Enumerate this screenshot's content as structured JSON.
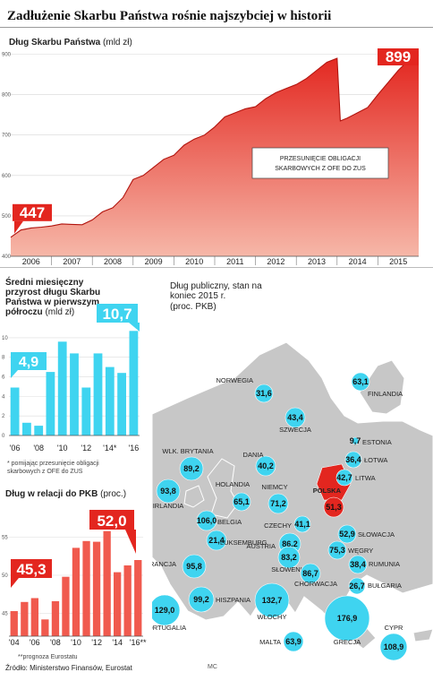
{
  "header": {
    "title": "Zadłużenie Skarbu Państwa rośnie najszybciej w historii"
  },
  "colors": {
    "red": "#e3261f",
    "redLight": "#f6b7a8",
    "cyan": "#3fd4f0",
    "map": "#c7c7c7",
    "sea": "#ffffff",
    "poland": "#e3261f"
  },
  "chart_data": [
    {
      "type": "area",
      "title": "Dług Skarbu Państwa",
      "unit": "(mld zł)",
      "x_categories": [
        "2006",
        "2007",
        "2008",
        "2009",
        "2010",
        "2011",
        "2012",
        "2013",
        "2014",
        "2015"
      ],
      "yticks": [
        400,
        500,
        600,
        700,
        800,
        900
      ],
      "ylim": [
        400,
        910
      ],
      "start_value": "447",
      "end_value": "899",
      "annotation": "PRZESUNIĘCIE OBLIGACJI SKARBOWYCH Z OFE DO ZUS",
      "x": [
        2006.0,
        2006.25,
        2006.5,
        2006.75,
        2007.0,
        2007.25,
        2007.5,
        2007.75,
        2008.0,
        2008.25,
        2008.5,
        2008.75,
        2009.0,
        2009.25,
        2009.5,
        2009.75,
        2010.0,
        2010.25,
        2010.5,
        2010.75,
        2011.0,
        2011.25,
        2011.5,
        2011.75,
        2012.0,
        2012.25,
        2012.5,
        2012.75,
        2013.0,
        2013.25,
        2013.5,
        2013.75,
        2014.0,
        2014.08,
        2014.25,
        2014.5,
        2014.75,
        2015.0,
        2015.25,
        2015.5,
        2015.75,
        2016.0
      ],
      "values": [
        447,
        465,
        470,
        472,
        475,
        480,
        479,
        478,
        490,
        510,
        520,
        545,
        590,
        600,
        620,
        640,
        650,
        675,
        690,
        700,
        720,
        745,
        755,
        765,
        770,
        790,
        805,
        815,
        825,
        840,
        860,
        880,
        890,
        735,
        742,
        755,
        768,
        800,
        830,
        860,
        885,
        899
      ]
    },
    {
      "type": "bar",
      "title": "Średni miesięczny przyrost długu Skarbu Państwa w pierwszym półroczu",
      "unit": "(mld zł)",
      "categories": [
        "2006",
        "2007",
        "2008",
        "2009",
        "2010",
        "2011",
        "2012",
        "2013",
        "2014*",
        "2015",
        "2016"
      ],
      "tick_labels": [
        "'06",
        "",
        "'08",
        "",
        "'10",
        "",
        "'12",
        "",
        "'14*",
        "",
        "'16"
      ],
      "yticks": [
        0,
        2,
        4,
        6,
        8,
        10
      ],
      "values": [
        4.9,
        1.3,
        1.0,
        6.5,
        9.6,
        8.4,
        4.9,
        8.4,
        7.0,
        6.4,
        10.7
      ],
      "highlight_first": "4,9",
      "highlight_last": "10,7",
      "footnote": "* pomijając przesunięcie obligacji skarbowych z OFE do ZUS"
    },
    {
      "type": "bar",
      "title": "Dług w relacji do PKB",
      "unit": "(proc.)",
      "categories": [
        "2004",
        "2005",
        "2006",
        "2007",
        "2008",
        "2009",
        "2010",
        "2011",
        "2012",
        "2013",
        "2014",
        "2015",
        "2016**"
      ],
      "tick_labels": [
        "'04",
        "",
        "'06",
        "",
        "'08",
        "",
        "'10",
        "",
        "'12",
        "",
        "'14",
        "",
        "'16**"
      ],
      "yticks": [
        45,
        50,
        55
      ],
      "values": [
        45.3,
        46.5,
        47.0,
        44.2,
        46.6,
        49.8,
        53.6,
        54.5,
        54.4,
        55.8,
        50.4,
        51.3,
        52.0
      ],
      "highlight_first": "45,3",
      "highlight_last": "52,0",
      "footnote": "**prognoza Eurostatu"
    }
  ],
  "map": {
    "title": "Dług publiczny, stan na koniec 2015 r.",
    "unit": "(proc. PKB)",
    "countries": [
      {
        "name": "NORWEGIA",
        "value": "31,6"
      },
      {
        "name": "FINLANDIA",
        "value": "63,1"
      },
      {
        "name": "SZWECJA",
        "value": "43,4"
      },
      {
        "name": "ESTONIA",
        "value": "9,7"
      },
      {
        "name": "ŁOTWA",
        "value": "36,4"
      },
      {
        "name": "LITWA",
        "value": "42,7"
      },
      {
        "name": "DANIA",
        "value": "40,2"
      },
      {
        "name": "WLK. BRYTANIA",
        "value": "89,2"
      },
      {
        "name": "IRLANDIA",
        "value": "93,8"
      },
      {
        "name": "HOLANDIA",
        "value": "65,1"
      },
      {
        "name": "NIEMCY",
        "value": "71,2"
      },
      {
        "name": "POLSKA",
        "value": "51,3"
      },
      {
        "name": "BELGIA",
        "value": "106,0"
      },
      {
        "name": "LUKSEMBURG",
        "value": "21,4"
      },
      {
        "name": "CZECHY",
        "value": "41,1"
      },
      {
        "name": "SŁOWACJA",
        "value": "52,9"
      },
      {
        "name": "AUSTRIA",
        "value": "86,2"
      },
      {
        "name": "WĘGRY",
        "value": "75,3"
      },
      {
        "name": "FRANCJA",
        "value": "95,8"
      },
      {
        "name": "SŁOWENIA",
        "value": "83,2"
      },
      {
        "name": "CHORWACJA",
        "value": "86,7"
      },
      {
        "name": "RUMUNIA",
        "value": "38,4"
      },
      {
        "name": "BUŁGARIA",
        "value": "26,7"
      },
      {
        "name": "PORTUGALIA",
        "value": "129,0"
      },
      {
        "name": "HISZPANIA",
        "value": "99,2"
      },
      {
        "name": "WŁOCHY",
        "value": "132,7"
      },
      {
        "name": "GRECJA",
        "value": "176,9"
      },
      {
        "name": "MALTA",
        "value": "63,9"
      },
      {
        "name": "CYPR",
        "value": "108,9"
      }
    ]
  },
  "footer": {
    "source": "Źródło: Ministerstwo Finansów, Eurostat",
    "credit": "MC"
  }
}
